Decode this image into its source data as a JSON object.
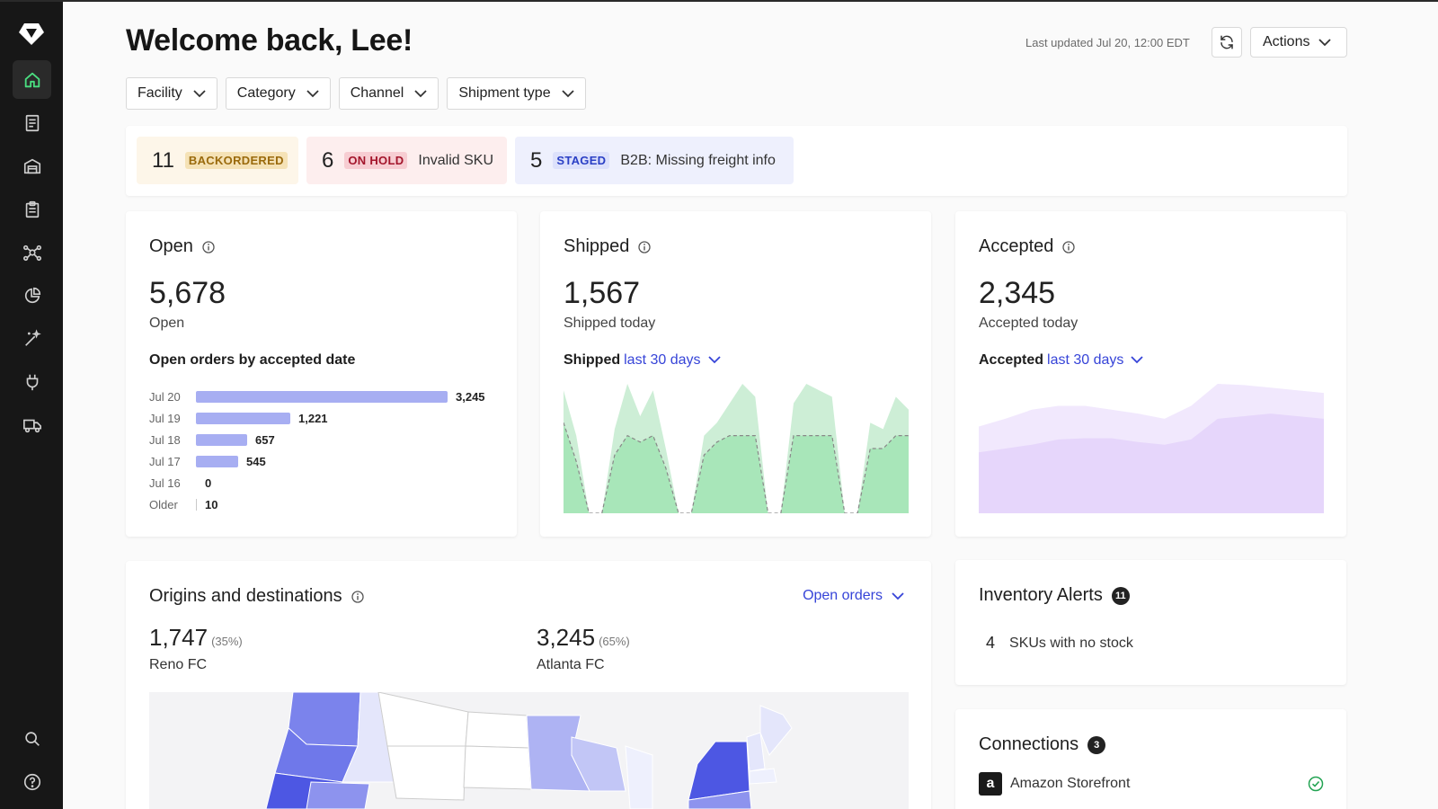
{
  "page": {
    "title": "Welcome back, Lee!",
    "last_updated": "Last updated Jul 20, 12:00 EDT",
    "actions_label": "Actions"
  },
  "sidebar": {
    "items": [
      {
        "icon": "home-icon",
        "active": true
      },
      {
        "icon": "orders-receipt-icon"
      },
      {
        "icon": "warehouse-icon"
      },
      {
        "icon": "clipboard-icon"
      },
      {
        "icon": "network-icon"
      },
      {
        "icon": "pie-chart-icon"
      },
      {
        "icon": "magic-wand-icon"
      },
      {
        "icon": "plug-icon"
      },
      {
        "icon": "truck-icon"
      },
      {
        "icon": "search-icon"
      },
      {
        "icon": "help-icon"
      }
    ]
  },
  "filters": [
    "Facility",
    "Category",
    "Channel",
    "Shipment type"
  ],
  "status": [
    {
      "count": "11",
      "badge": "BACKORDERED",
      "message": ""
    },
    {
      "count": "6",
      "badge": "ON HOLD",
      "message": "Invalid SKU"
    },
    {
      "count": "5",
      "badge": "STAGED",
      "message": "B2B: Missing freight info"
    }
  ],
  "open_card": {
    "title": "Open",
    "value": "5,678",
    "label": "Open",
    "chart_title": "Open orders by accepted date"
  },
  "shipped_card": {
    "title": "Shipped",
    "value": "1,567",
    "label": "Shipped today",
    "chart_label": "Shipped",
    "range": "last 30 days"
  },
  "accepted_card": {
    "title": "Accepted",
    "value": "2,345",
    "label": "Accepted today",
    "chart_label": "Accepted",
    "range": "last 30 days"
  },
  "origins": {
    "title": "Origins and destinations",
    "selector": "Open orders",
    "facilities": [
      {
        "value": "1,747",
        "pct": "(35%)",
        "name": "Reno FC"
      },
      {
        "value": "3,245",
        "pct": "(65%)",
        "name": "Atlanta FC"
      }
    ]
  },
  "inventory_alerts": {
    "title": "Inventory Alerts",
    "count": "11",
    "rows": [
      {
        "num": "4",
        "text": "SKUs with no stock"
      }
    ]
  },
  "connections": {
    "title": "Connections",
    "count": "3",
    "items": [
      {
        "name": "Amazon Storefront",
        "status": "connected"
      }
    ]
  },
  "colors": {
    "accent_blue": "#3644d8",
    "bar_purple": "#a7aef2",
    "shipped_green": "#a8e6b9",
    "accepted_purple": "#e6d6fb",
    "sidebar_bg": "#171717",
    "active_icon_green": "#4ade80"
  },
  "chart_data": [
    {
      "type": "bar",
      "orientation": "horizontal",
      "title": "Open orders by accepted date",
      "categories": [
        "Jul 20",
        "Jul 19",
        "Jul 18",
        "Jul 17",
        "Jul 16",
        "Older"
      ],
      "values": [
        3245,
        1221,
        657,
        545,
        0,
        10
      ]
    },
    {
      "type": "area",
      "title": "Shipped last 30 days",
      "series": [
        {
          "values": [
            95,
            60,
            0,
            0,
            65,
            100,
            75,
            95,
            50,
            0,
            0,
            60,
            70,
            85,
            100,
            90,
            0,
            0,
            85,
            100,
            95,
            90,
            0,
            0,
            70,
            65,
            90,
            80
          ]
        },
        {
          "values": [
            70,
            40,
            0,
            0,
            45,
            60,
            55,
            60,
            35,
            0,
            0,
            45,
            55,
            60,
            60,
            60,
            0,
            0,
            60,
            60,
            60,
            60,
            0,
            0,
            50,
            50,
            60,
            60
          ]
        }
      ]
    },
    {
      "type": "area",
      "title": "Accepted last 30 days",
      "series": [
        {
          "values": [
            67,
            73,
            80,
            83,
            83,
            80,
            77,
            73,
            83,
            100,
            99,
            97,
            95,
            93
          ]
        },
        {
          "values": [
            47,
            50,
            53,
            57,
            58,
            58,
            55,
            53,
            57,
            73,
            75,
            77,
            75,
            73
          ]
        }
      ]
    }
  ]
}
